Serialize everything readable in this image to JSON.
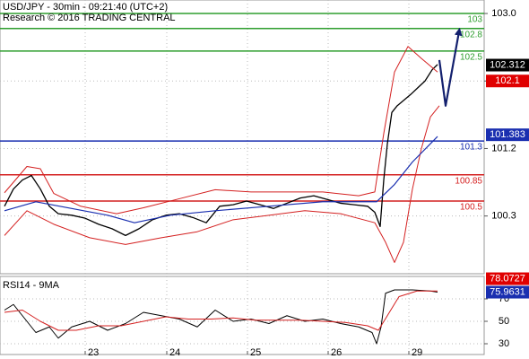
{
  "chart_data": [
    {
      "type": "line",
      "title": "USD/JPY - 30min - 09:21:40 (UTC+2)",
      "subtitle": "Research © 2016 TRADING CENTRAL",
      "xlim": [
        0,
        540
      ],
      "xticks": [
        {
          "value": 95,
          "label": "23"
        },
        {
          "value": 186,
          "label": "24"
        },
        {
          "value": 276,
          "label": "25"
        },
        {
          "value": 366,
          "label": "26"
        },
        {
          "value": 456,
          "label": "29"
        }
      ],
      "ylim": [
        99.53,
        103.18
      ],
      "yticks": [
        {
          "value": 103,
          "label": "103.0"
        },
        102.1,
        101.2,
        100.3
      ],
      "grid": true,
      "levels": [
        {
          "value": 103,
          "label": "103",
          "color": "#2e9e2e"
        },
        {
          "value": 102.8,
          "label": "102.8",
          "color": "#2e9e2e"
        },
        {
          "value": 102.5,
          "label": "102.5",
          "color": "#2e9e2e"
        },
        {
          "value": 101.3,
          "label": "101.3",
          "color": "#1a2fb0"
        },
        {
          "value": 100.85,
          "label": "100.85",
          "color": "#d42020"
        },
        {
          "value": 100.5,
          "label": "100.5",
          "color": "#d42020"
        }
      ],
      "markers": [
        {
          "value": 102.312,
          "color": "#000000"
        },
        {
          "value": 102.1,
          "color": "#e00000"
        },
        {
          "value": 101.383,
          "color": "#1a2fb0"
        }
      ],
      "series": [
        {
          "color": "#000000",
          "width": 1.3,
          "x": [
            5,
            15,
            25,
            35,
            45,
            55,
            65,
            80,
            95,
            110,
            125,
            140,
            155,
            170,
            185,
            200,
            215,
            230,
            245,
            260,
            275,
            290,
            305,
            320,
            335,
            350,
            365,
            380,
            395,
            410,
            418,
            424,
            428,
            432,
            437,
            443,
            450,
            458,
            466,
            474,
            482,
            488
          ],
          "values": [
            100.43,
            100.66,
            100.78,
            100.84,
            100.66,
            100.43,
            100.33,
            100.31,
            100.27,
            100.19,
            100.13,
            100.04,
            100.13,
            100.25,
            100.31,
            100.33,
            100.28,
            100.21,
            100.43,
            100.45,
            100.5,
            100.45,
            100.4,
            100.47,
            100.54,
            100.57,
            100.52,
            100.47,
            100.45,
            100.43,
            100.35,
            100.16,
            100.78,
            101.26,
            101.68,
            101.77,
            101.84,
            101.92,
            102.01,
            102.1,
            102.25,
            102.32
          ]
        },
        {
          "color": "#d42020",
          "width": 1,
          "x": [
            5,
            30,
            45,
            60,
            90,
            130,
            160,
            200,
            240,
            280,
            320,
            360,
            400,
            418,
            428,
            440,
            455,
            470,
            488
          ],
          "values": [
            100.61,
            100.96,
            100.93,
            100.6,
            100.43,
            100.33,
            100.41,
            100.53,
            100.65,
            100.62,
            100.62,
            100.62,
            100.57,
            100.62,
            101.4,
            102.22,
            102.56,
            102.4,
            102.22
          ]
        },
        {
          "color": "#d42020",
          "width": 1,
          "x": [
            5,
            30,
            60,
            100,
            140,
            180,
            220,
            260,
            300,
            340,
            380,
            418,
            430,
            440,
            450,
            460,
            470,
            480,
            490
          ],
          "values": [
            100.04,
            100.37,
            100.19,
            100.01,
            99.92,
            100.01,
            100.09,
            100.25,
            100.31,
            100.37,
            100.33,
            100.21,
            99.95,
            99.68,
            99.95,
            100.66,
            101.2,
            101.62,
            101.77
          ]
        },
        {
          "color": "#1a2fb0",
          "width": 1.2,
          "x": [
            5,
            40,
            80,
            120,
            150,
            190,
            240,
            300,
            360,
            420,
            440,
            460,
            488
          ],
          "values": [
            100.37,
            100.49,
            100.4,
            100.31,
            100.21,
            100.31,
            100.37,
            100.43,
            100.49,
            100.49,
            100.72,
            101.02,
            101.36
          ]
        },
        {
          "color": "#13206e",
          "width": 2.2,
          "arrow": true,
          "x": [
            490,
            497,
            512
          ],
          "values": [
            102.38,
            101.77,
            102.76
          ]
        }
      ]
    },
    {
      "type": "line",
      "title": "RSI14 - 9MA",
      "xlim": [
        0,
        540
      ],
      "ylim": [
        20.4,
        90
      ],
      "yticks": [
        70,
        50,
        30
      ],
      "grid": true,
      "markers": [
        {
          "value": 78.0727,
          "color": "#e00000"
        },
        {
          "value": 75.9631,
          "color": "#1a2fb0"
        }
      ],
      "series": [
        {
          "color": "#000000",
          "width": 1,
          "x": [
            5,
            15,
            25,
            40,
            55,
            65,
            80,
            100,
            120,
            140,
            160,
            180,
            200,
            220,
            240,
            260,
            280,
            300,
            320,
            340,
            360,
            380,
            400,
            415,
            420,
            425,
            430,
            440,
            460,
            480,
            488
          ],
          "values": [
            60,
            65,
            55,
            40,
            45,
            35,
            45,
            50,
            42,
            48,
            58,
            55,
            52,
            45,
            60,
            50,
            52,
            48,
            55,
            50,
            52,
            48,
            45,
            40,
            30,
            45,
            75,
            78,
            78,
            77,
            76
          ]
        },
        {
          "color": "#d42020",
          "width": 1,
          "x": [
            5,
            25,
            45,
            65,
            85,
            110,
            135,
            160,
            185,
            210,
            235,
            260,
            285,
            310,
            335,
            360,
            385,
            410,
            422,
            432,
            445,
            465,
            488
          ],
          "values": [
            58,
            60,
            50,
            42,
            42,
            46,
            46,
            50,
            54,
            52,
            52,
            53,
            51,
            51,
            51,
            50,
            49,
            46,
            42,
            55,
            72,
            77,
            77
          ]
        }
      ]
    }
  ]
}
